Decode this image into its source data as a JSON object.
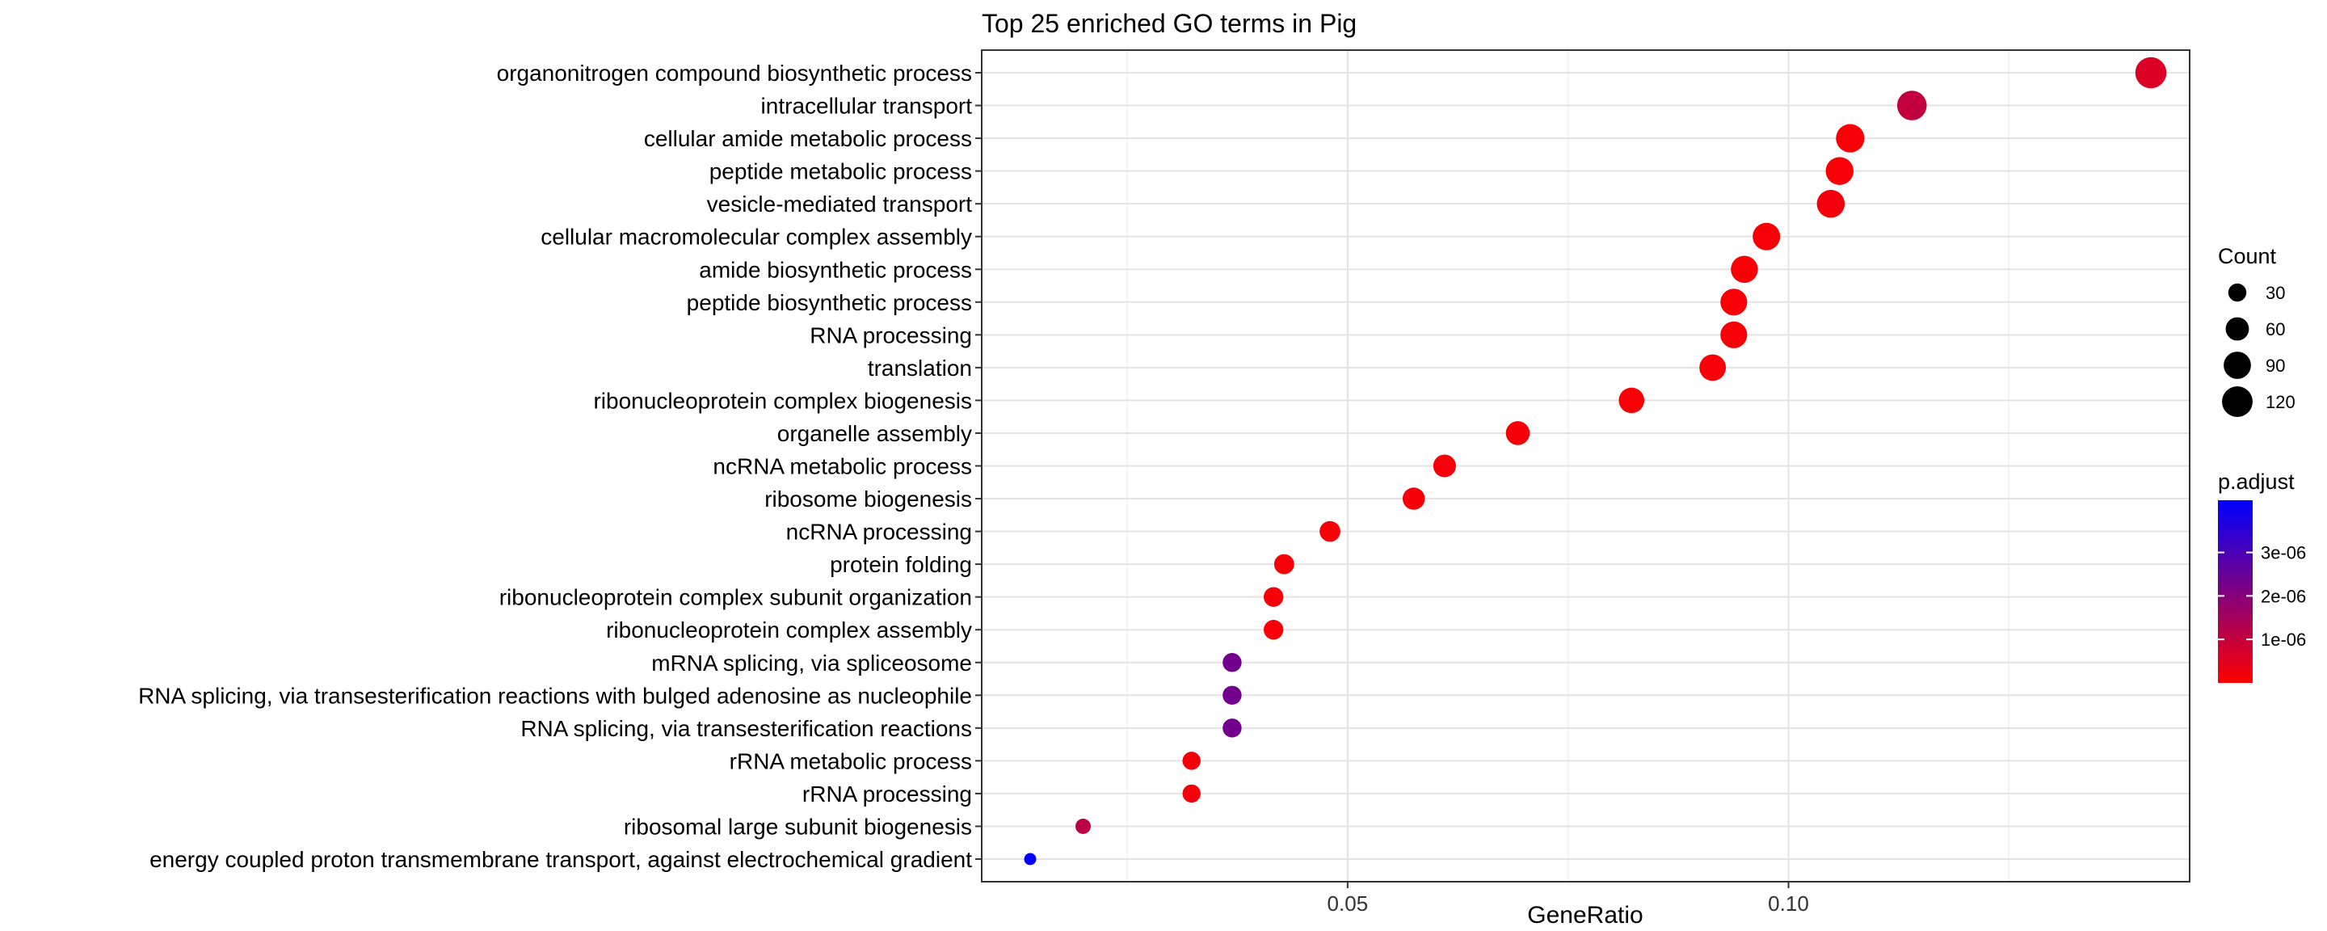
{
  "chart_data": {
    "type": "scatter",
    "title": "Top 25 enriched GO terms in Pig",
    "xlabel": "GeneRatio",
    "ylabel": "",
    "xlim": [
      0.0085,
      0.1455
    ],
    "x_ticks": [
      {
        "value": 0.05,
        "label": "0.05"
      },
      {
        "value": 0.1,
        "label": "0.10"
      }
    ],
    "grid": true,
    "points": [
      {
        "term": "organonitrogen compound biosynthetic process",
        "gene_ratio": 0.1411,
        "count": 125,
        "p_adjust": 6e-07
      },
      {
        "term": "intracellular transport",
        "gene_ratio": 0.114,
        "count": 110,
        "p_adjust": 1e-06
      },
      {
        "term": "cellular amide metabolic process",
        "gene_ratio": 0.107,
        "count": 100,
        "p_adjust": 1e-07
      },
      {
        "term": "peptide metabolic process",
        "gene_ratio": 0.1058,
        "count": 95,
        "p_adjust": 1e-07
      },
      {
        "term": "vesicle-mediated transport",
        "gene_ratio": 0.1048,
        "count": 95,
        "p_adjust": 2e-07
      },
      {
        "term": "cellular macromolecular complex assembly",
        "gene_ratio": 0.0975,
        "count": 92,
        "p_adjust": 1e-07
      },
      {
        "term": "amide biosynthetic process",
        "gene_ratio": 0.095,
        "count": 88,
        "p_adjust": 1e-07
      },
      {
        "term": "peptide biosynthetic process",
        "gene_ratio": 0.0938,
        "count": 86,
        "p_adjust": 1e-07
      },
      {
        "term": "RNA processing",
        "gene_ratio": 0.0938,
        "count": 86,
        "p_adjust": 1e-07
      },
      {
        "term": "translation",
        "gene_ratio": 0.0914,
        "count": 84,
        "p_adjust": 1e-07
      },
      {
        "term": "ribonucleoprotein complex biogenesis",
        "gene_ratio": 0.0822,
        "count": 76,
        "p_adjust": 1e-07
      },
      {
        "term": "organelle assembly",
        "gene_ratio": 0.0693,
        "count": 64,
        "p_adjust": 1.5e-07
      },
      {
        "term": "ncRNA metabolic process",
        "gene_ratio": 0.061,
        "count": 56,
        "p_adjust": 1.5e-07
      },
      {
        "term": "ribosome biogenesis",
        "gene_ratio": 0.0575,
        "count": 53,
        "p_adjust": 1.5e-07
      },
      {
        "term": "ncRNA processing",
        "gene_ratio": 0.048,
        "count": 44,
        "p_adjust": 1.5e-07
      },
      {
        "term": "protein folding",
        "gene_ratio": 0.0428,
        "count": 40,
        "p_adjust": 1.5e-07
      },
      {
        "term": "ribonucleoprotein complex subunit organization",
        "gene_ratio": 0.0416,
        "count": 38,
        "p_adjust": 1.5e-07
      },
      {
        "term": "ribonucleoprotein complex assembly",
        "gene_ratio": 0.0416,
        "count": 38,
        "p_adjust": 1.5e-07
      },
      {
        "term": "mRNA splicing, via spliceosome",
        "gene_ratio": 0.0369,
        "count": 34,
        "p_adjust": 2.3e-06
      },
      {
        "term": "RNA splicing, via transesterification reactions with bulged adenosine as nucleophile",
        "gene_ratio": 0.0369,
        "count": 34,
        "p_adjust": 2.3e-06
      },
      {
        "term": "RNA splicing, via transesterification reactions",
        "gene_ratio": 0.0369,
        "count": 34,
        "p_adjust": 2.3e-06
      },
      {
        "term": "rRNA metabolic process",
        "gene_ratio": 0.0323,
        "count": 30,
        "p_adjust": 2e-07
      },
      {
        "term": "rRNA processing",
        "gene_ratio": 0.0323,
        "count": 30,
        "p_adjust": 2e-07
      },
      {
        "term": "ribosomal large subunit biogenesis",
        "gene_ratio": 0.02,
        "count": 18,
        "p_adjust": 1.1e-06
      },
      {
        "term": "energy coupled proton transmembrane transport, against electrochemical gradient",
        "gene_ratio": 0.014,
        "count": 8,
        "p_adjust": 4.2e-06
      }
    ],
    "size_legend": {
      "title": "Count",
      "entries": [
        {
          "value": 30,
          "label": "30"
        },
        {
          "value": 60,
          "label": "60"
        },
        {
          "value": 90,
          "label": "90"
        },
        {
          "value": 120,
          "label": "120"
        }
      ]
    },
    "color_legend": {
      "title": "p.adjust",
      "range": [
        0,
        4.2e-06
      ],
      "low_color": "#ff0000",
      "high_color": "#0000ff",
      "ticks": [
        {
          "value": 1e-06,
          "label": "1e-06"
        },
        {
          "value": 2e-06,
          "label": "2e-06"
        },
        {
          "value": 3e-06,
          "label": "3e-06"
        }
      ]
    },
    "legend_position": "right"
  }
}
